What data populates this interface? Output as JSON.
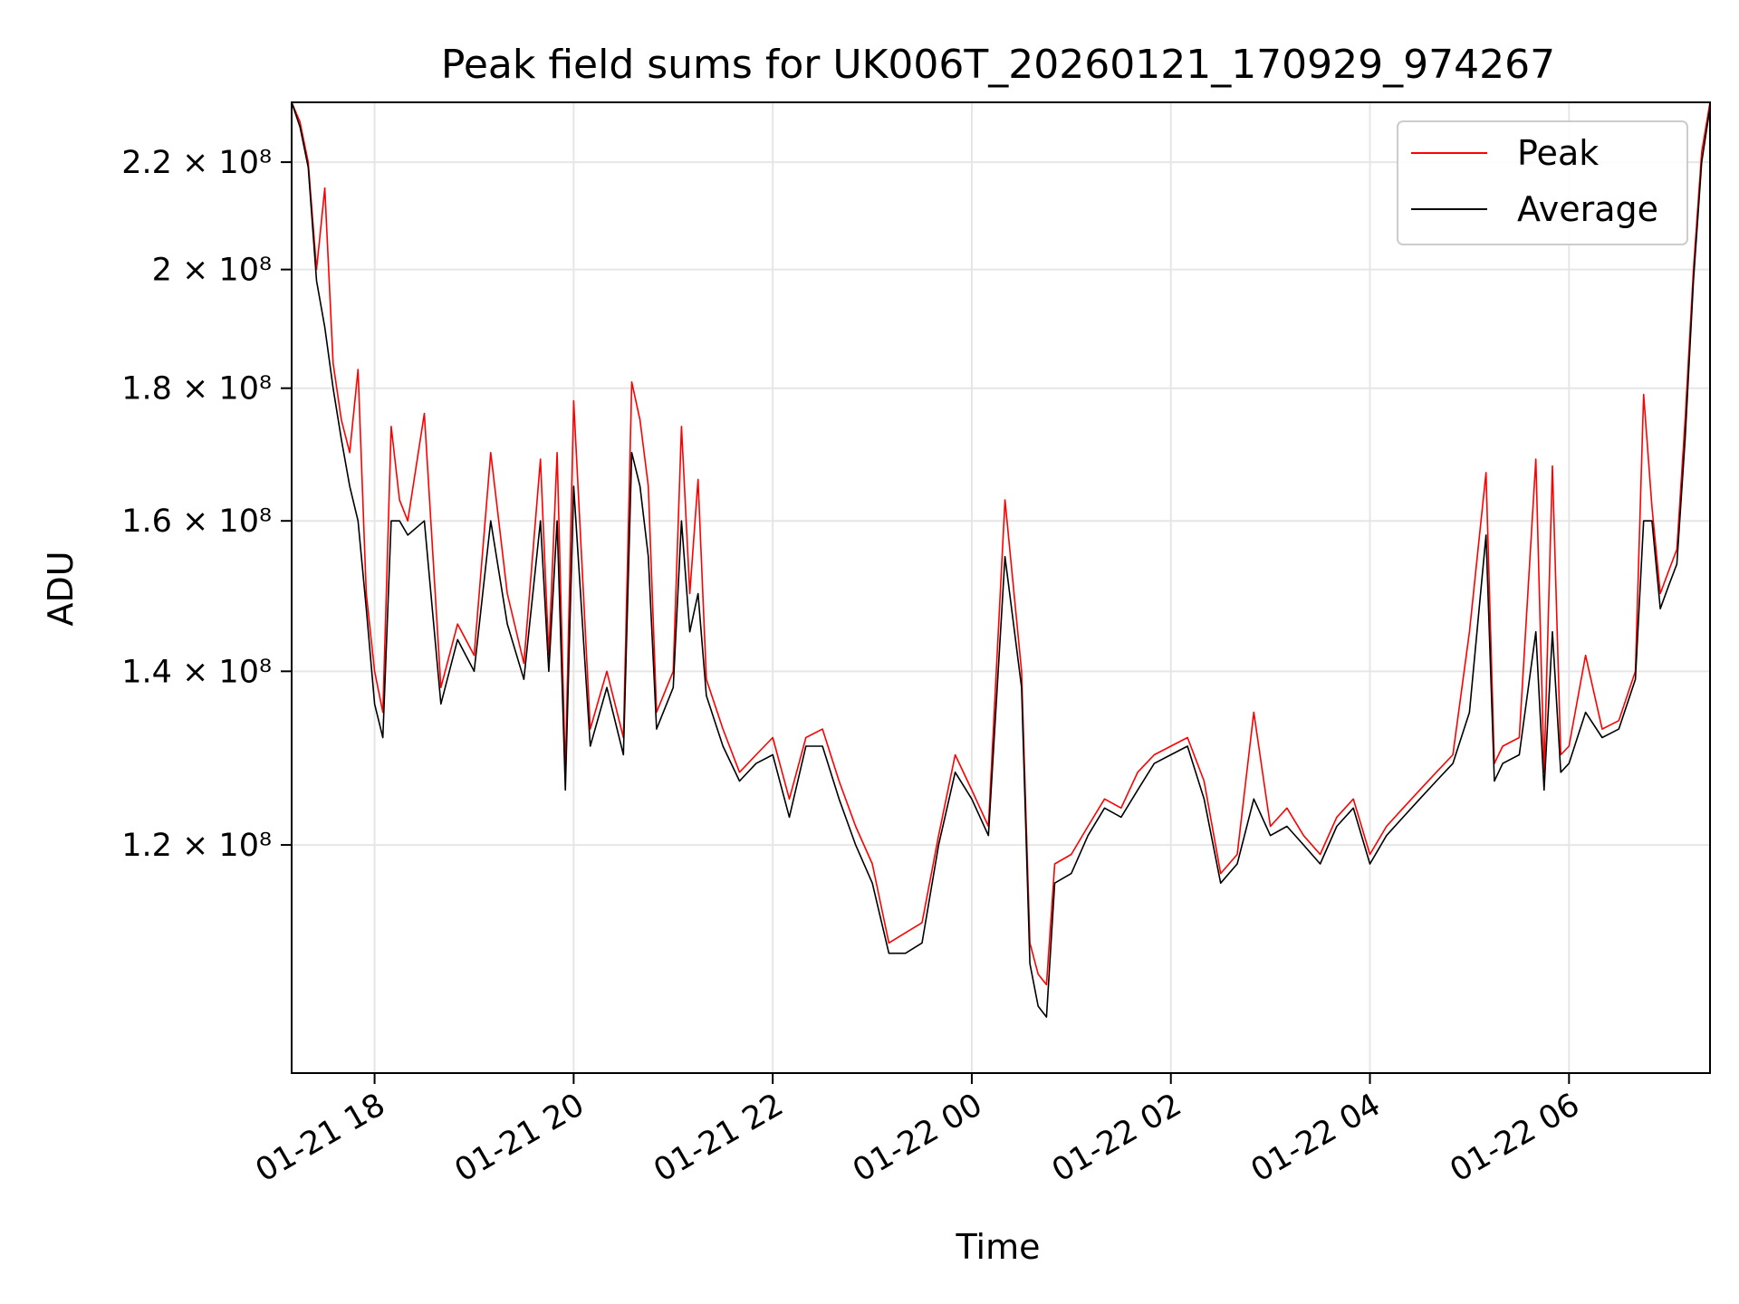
{
  "chart_data": {
    "type": "line",
    "title": "Peak field sums for UK006T_20260121_170929_974267",
    "xlabel": "Time",
    "ylabel": "ADU",
    "x_axis": {
      "type": "datetime",
      "range": [
        "2026-01-21 17:10",
        "2026-01-22 07:25"
      ],
      "ticks": [
        {
          "value": "2026-01-21 18:00",
          "label": "01-21 18"
        },
        {
          "value": "2026-01-21 20:00",
          "label": "01-21 20"
        },
        {
          "value": "2026-01-21 22:00",
          "label": "01-21 22"
        },
        {
          "value": "2026-01-22 00:00",
          "label": "01-22 00"
        },
        {
          "value": "2026-01-22 02:00",
          "label": "01-22 02"
        },
        {
          "value": "2026-01-22 04:00",
          "label": "01-22 04"
        },
        {
          "value": "2026-01-22 06:00",
          "label": "01-22 06"
        }
      ]
    },
    "y_axis": {
      "scale": "log",
      "range": [
        98000000,
        232000000
      ],
      "ticks": [
        {
          "value": 120000000,
          "label": "1.2 × 10⁸"
        },
        {
          "value": 140000000,
          "label": "1.4 × 10⁸"
        },
        {
          "value": 160000000,
          "label": "1.6 × 10⁸"
        },
        {
          "value": 180000000,
          "label": "1.8 × 10⁸"
        },
        {
          "value": 200000000,
          "label": "2 × 10⁸"
        },
        {
          "value": 220000000,
          "label": "2.2 × 10⁸"
        }
      ]
    },
    "grid": true,
    "legend": {
      "position": "top-right",
      "entries": [
        "Peak",
        "Average"
      ]
    },
    "series": [
      {
        "name": "Peak",
        "color": "#ff0000"
      },
      {
        "name": "Average",
        "color": "#000000"
      }
    ],
    "x": [
      "2026-01-21 17:10",
      "2026-01-21 17:15",
      "2026-01-21 17:20",
      "2026-01-21 17:25",
      "2026-01-21 17:30",
      "2026-01-21 17:35",
      "2026-01-21 17:40",
      "2026-01-21 17:45",
      "2026-01-21 17:50",
      "2026-01-21 17:55",
      "2026-01-21 18:00",
      "2026-01-21 18:05",
      "2026-01-21 18:10",
      "2026-01-21 18:15",
      "2026-01-21 18:20",
      "2026-01-21 18:30",
      "2026-01-21 18:40",
      "2026-01-21 18:50",
      "2026-01-21 19:00",
      "2026-01-21 19:10",
      "2026-01-21 19:20",
      "2026-01-21 19:30",
      "2026-01-21 19:40",
      "2026-01-21 19:45",
      "2026-01-21 19:50",
      "2026-01-21 19:55",
      "2026-01-21 20:00",
      "2026-01-21 20:10",
      "2026-01-21 20:20",
      "2026-01-21 20:30",
      "2026-01-21 20:35",
      "2026-01-21 20:40",
      "2026-01-21 20:45",
      "2026-01-21 20:50",
      "2026-01-21 21:00",
      "2026-01-21 21:05",
      "2026-01-21 21:10",
      "2026-01-21 21:15",
      "2026-01-21 21:20",
      "2026-01-21 21:30",
      "2026-01-21 21:40",
      "2026-01-21 21:50",
      "2026-01-21 22:00",
      "2026-01-21 22:10",
      "2026-01-21 22:20",
      "2026-01-21 22:30",
      "2026-01-21 22:40",
      "2026-01-21 22:50",
      "2026-01-21 23:00",
      "2026-01-21 23:10",
      "2026-01-21 23:20",
      "2026-01-21 23:30",
      "2026-01-21 23:40",
      "2026-01-21 23:50",
      "2026-01-22 00:00",
      "2026-01-22 00:10",
      "2026-01-22 00:20",
      "2026-01-22 00:30",
      "2026-01-22 00:35",
      "2026-01-22 00:40",
      "2026-01-22 00:45",
      "2026-01-22 00:50",
      "2026-01-22 01:00",
      "2026-01-22 01:10",
      "2026-01-22 01:20",
      "2026-01-22 01:30",
      "2026-01-22 01:40",
      "2026-01-22 01:50",
      "2026-01-22 02:00",
      "2026-01-22 02:10",
      "2026-01-22 02:20",
      "2026-01-22 02:30",
      "2026-01-22 02:40",
      "2026-01-22 02:50",
      "2026-01-22 03:00",
      "2026-01-22 03:10",
      "2026-01-22 03:20",
      "2026-01-22 03:30",
      "2026-01-22 03:40",
      "2026-01-22 03:50",
      "2026-01-22 04:00",
      "2026-01-22 04:10",
      "2026-01-22 04:20",
      "2026-01-22 04:30",
      "2026-01-22 04:40",
      "2026-01-22 04:50",
      "2026-01-22 05:00",
      "2026-01-22 05:10",
      "2026-01-22 05:15",
      "2026-01-22 05:20",
      "2026-01-22 05:30",
      "2026-01-22 05:40",
      "2026-01-22 05:45",
      "2026-01-22 05:50",
      "2026-01-22 05:55",
      "2026-01-22 06:00",
      "2026-01-22 06:10",
      "2026-01-22 06:20",
      "2026-01-22 06:30",
      "2026-01-22 06:40",
      "2026-01-22 06:45",
      "2026-01-22 06:50",
      "2026-01-22 06:55",
      "2026-01-22 07:00",
      "2026-01-22 07:05",
      "2026-01-22 07:10",
      "2026-01-22 07:15",
      "2026-01-22 07:20",
      "2026-01-22 07:25"
    ],
    "peak": [
      232000000,
      228000000,
      220000000,
      200000000,
      215000000,
      184000000,
      175000000,
      170000000,
      183000000,
      150000000,
      140000000,
      135000000,
      174000000,
      163000000,
      160000000,
      176000000,
      138000000,
      146000000,
      142000000,
      170000000,
      150000000,
      141000000,
      169000000,
      142000000,
      170000000,
      128000000,
      178000000,
      133000000,
      140000000,
      132000000,
      181000000,
      175000000,
      165000000,
      135000000,
      140000000,
      174000000,
      150000000,
      166000000,
      139000000,
      133000000,
      128000000,
      130000000,
      132000000,
      125000000,
      132000000,
      133000000,
      127000000,
      122000000,
      118000000,
      110000000,
      111000000,
      112000000,
      121000000,
      130000000,
      126000000,
      122000000,
      163000000,
      140000000,
      110000000,
      107000000,
      106000000,
      118000000,
      119000000,
      122000000,
      125000000,
      124000000,
      128000000,
      130000000,
      131000000,
      132000000,
      127000000,
      117000000,
      119000000,
      135000000,
      122000000,
      124000000,
      121000000,
      119000000,
      123000000,
      125000000,
      119000000,
      122000000,
      124000000,
      126000000,
      128000000,
      130000000,
      145000000,
      167000000,
      129000000,
      131000000,
      132000000,
      169000000,
      128000000,
      168000000,
      130000000,
      131000000,
      142000000,
      133000000,
      134000000,
      140000000,
      179000000,
      162000000,
      150000000,
      153000000,
      156000000,
      175000000,
      200000000,
      222000000,
      232000000
    ],
    "average": [
      232000000,
      227000000,
      219000000,
      198000000,
      190000000,
      180000000,
      172000000,
      165000000,
      160000000,
      148000000,
      136000000,
      132000000,
      160000000,
      160000000,
      158000000,
      160000000,
      136000000,
      144000000,
      140000000,
      160000000,
      146000000,
      139000000,
      160000000,
      140000000,
      160000000,
      126000000,
      165000000,
      131000000,
      138000000,
      130000000,
      170000000,
      165000000,
      155000000,
      133000000,
      138000000,
      160000000,
      145000000,
      150000000,
      137000000,
      131000000,
      127000000,
      129000000,
      130000000,
      123000000,
      131000000,
      131000000,
      125000000,
      120000000,
      116000000,
      109000000,
      109000000,
      110000000,
      120000000,
      128000000,
      125000000,
      121000000,
      155000000,
      138000000,
      108000000,
      104000000,
      103000000,
      116000000,
      117000000,
      121000000,
      124000000,
      123000000,
      126000000,
      129000000,
      130000000,
      131000000,
      125000000,
      116000000,
      118000000,
      125000000,
      121000000,
      122000000,
      120000000,
      118000000,
      122000000,
      124000000,
      118000000,
      121000000,
      123000000,
      125000000,
      127000000,
      129000000,
      135000000,
      158000000,
      127000000,
      129000000,
      130000000,
      145000000,
      126000000,
      145000000,
      128000000,
      129000000,
      135000000,
      132000000,
      133000000,
      139000000,
      160000000,
      160000000,
      148000000,
      151000000,
      154000000,
      172000000,
      198000000,
      220000000,
      231000000
    ]
  }
}
